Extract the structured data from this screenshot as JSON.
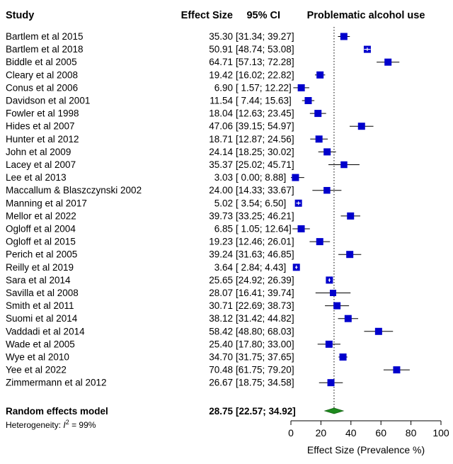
{
  "chart_data": {
    "type": "forest",
    "title": "Problematic alcohol use",
    "columns": {
      "study": "Study",
      "effect": "Effect Size",
      "ci": "95% CI"
    },
    "xlabel": "Effect Size (Prevalence %)",
    "xlim": [
      0,
      100
    ],
    "xticks": [
      0,
      20,
      40,
      60,
      80,
      100
    ],
    "reference_line": 28.75,
    "marker_color": "#0000cc",
    "summary_color": "#1e8a1e",
    "studies": [
      {
        "name": "Bartlem et al 2015",
        "es": 35.3,
        "lo": 31.34,
        "hi": 39.27,
        "es_text": "35.30",
        "ci_text": "[31.34; 39.27]",
        "weight": 1.0
      },
      {
        "name": "Bartlem et al 2018",
        "es": 50.91,
        "lo": 48.74,
        "hi": 53.08,
        "es_text": "50.91",
        "ci_text": "[48.74; 53.08]",
        "weight": 1.0
      },
      {
        "name": "Biddle et al 2005",
        "es": 64.71,
        "lo": 57.13,
        "hi": 72.28,
        "es_text": "64.71",
        "ci_text": "[57.13; 72.28]",
        "weight": 1.0
      },
      {
        "name": "Cleary et al 2008",
        "es": 19.42,
        "lo": 16.02,
        "hi": 22.82,
        "es_text": "19.42",
        "ci_text": "[16.02; 22.82]",
        "weight": 1.0
      },
      {
        "name": "Conus et al 2006",
        "es": 6.9,
        "lo": 1.57,
        "hi": 12.22,
        "es_text": "6.90",
        "ci_text": "[ 1.57; 12.22]",
        "weight": 1.0
      },
      {
        "name": "Davidson et al 2001",
        "es": 11.54,
        "lo": 7.44,
        "hi": 15.63,
        "es_text": "11.54",
        "ci_text": "[ 7.44; 15.63]",
        "weight": 1.0
      },
      {
        "name": "Fowler et al 1998",
        "es": 18.04,
        "lo": 12.63,
        "hi": 23.45,
        "es_text": "18.04",
        "ci_text": "[12.63; 23.45]",
        "weight": 1.0
      },
      {
        "name": "Hides et al 2007",
        "es": 47.06,
        "lo": 39.15,
        "hi": 54.97,
        "es_text": "47.06",
        "ci_text": "[39.15; 54.97]",
        "weight": 1.0
      },
      {
        "name": "Hunter et al 2012",
        "es": 18.71,
        "lo": 12.87,
        "hi": 24.56,
        "es_text": "18.71",
        "ci_text": "[12.87; 24.56]",
        "weight": 1.0
      },
      {
        "name": "John et al 2009",
        "es": 24.14,
        "lo": 18.25,
        "hi": 30.02,
        "es_text": "24.14",
        "ci_text": "[18.25; 30.02]",
        "weight": 1.0
      },
      {
        "name": "Lacey et al 2007",
        "es": 35.37,
        "lo": 25.02,
        "hi": 45.71,
        "es_text": "35.37",
        "ci_text": "[25.02; 45.71]",
        "weight": 0.95
      },
      {
        "name": "Lee et al 2013",
        "es": 3.03,
        "lo": 0.0,
        "hi": 8.88,
        "es_text": "3.03",
        "ci_text": "[ 0.00; 8.88]",
        "weight": 1.0
      },
      {
        "name": "Maccallum & Blaszczynski 2002",
        "es": 24.0,
        "lo": 14.33,
        "hi": 33.67,
        "es_text": "24.00",
        "ci_text": "[14.33; 33.67]",
        "weight": 0.95
      },
      {
        "name": "Manning et al 2017",
        "es": 5.02,
        "lo": 3.54,
        "hi": 6.5,
        "es_text": "5.02",
        "ci_text": "[ 3.54; 6.50]",
        "weight": 1.0
      },
      {
        "name": "Mellor et al 2022",
        "es": 39.73,
        "lo": 33.25,
        "hi": 46.21,
        "es_text": "39.73",
        "ci_text": "[33.25; 46.21]",
        "weight": 1.0
      },
      {
        "name": "Ogloff et al 2004",
        "es": 6.85,
        "lo": 1.05,
        "hi": 12.64,
        "es_text": "6.85",
        "ci_text": "[ 1.05; 12.64]",
        "weight": 1.0
      },
      {
        "name": "Ogloff et al 2015",
        "es": 19.23,
        "lo": 12.46,
        "hi": 26.01,
        "es_text": "19.23",
        "ci_text": "[12.46; 26.01]",
        "weight": 1.0
      },
      {
        "name": "Perich et al 2005",
        "es": 39.24,
        "lo": 31.63,
        "hi": 46.85,
        "es_text": "39.24",
        "ci_text": "[31.63; 46.85]",
        "weight": 1.0
      },
      {
        "name": "Reilly et al 2019",
        "es": 3.64,
        "lo": 2.84,
        "hi": 4.43,
        "es_text": "3.64",
        "ci_text": "[ 2.84; 4.43]",
        "weight": 1.0
      },
      {
        "name": "Sara et al 2014",
        "es": 25.65,
        "lo": 24.92,
        "hi": 26.39,
        "es_text": "25.65",
        "ci_text": "[24.92; 26.39]",
        "weight": 1.0
      },
      {
        "name": "Savilla et al 2008",
        "es": 28.07,
        "lo": 16.41,
        "hi": 39.74,
        "es_text": "28.07",
        "ci_text": "[16.41; 39.74]",
        "weight": 0.9
      },
      {
        "name": "Smith et al 2011",
        "es": 30.71,
        "lo": 22.69,
        "hi": 38.73,
        "es_text": "30.71",
        "ci_text": "[22.69; 38.73]",
        "weight": 1.0
      },
      {
        "name": "Suomi et al 2014",
        "es": 38.12,
        "lo": 31.42,
        "hi": 44.82,
        "es_text": "38.12",
        "ci_text": "[31.42; 44.82]",
        "weight": 1.0
      },
      {
        "name": "Vaddadi et al 2014",
        "es": 58.42,
        "lo": 48.8,
        "hi": 68.03,
        "es_text": "58.42",
        "ci_text": "[48.80; 68.03]",
        "weight": 1.0
      },
      {
        "name": "Wade et al 2005",
        "es": 25.4,
        "lo": 17.8,
        "hi": 33.0,
        "es_text": "25.40",
        "ci_text": "[17.80; 33.00]",
        "weight": 1.0
      },
      {
        "name": "Wye et al 2010",
        "es": 34.7,
        "lo": 31.75,
        "hi": 37.65,
        "es_text": "34.70",
        "ci_text": "[31.75; 37.65]",
        "weight": 1.0
      },
      {
        "name": "Yee et al 2022",
        "es": 70.48,
        "lo": 61.75,
        "hi": 79.2,
        "es_text": "70.48",
        "ci_text": "[61.75; 79.20]",
        "weight": 1.0
      },
      {
        "name": "Zimmermann et al 2012",
        "es": 26.67,
        "lo": 18.75,
        "hi": 34.58,
        "es_text": "26.67",
        "ci_text": "[18.75; 34.58]",
        "weight": 1.0
      }
    ],
    "summary": {
      "name": "Random effects model",
      "es": 28.75,
      "lo": 22.57,
      "hi": 34.92,
      "es_text": "28.75",
      "ci_text": "[22.57; 34.92]",
      "heterogeneity_prefix": "Heterogeneity: ",
      "heterogeneity_symbol": "I",
      "heterogeneity_sup": "2",
      "heterogeneity_value": " = 99%"
    }
  }
}
